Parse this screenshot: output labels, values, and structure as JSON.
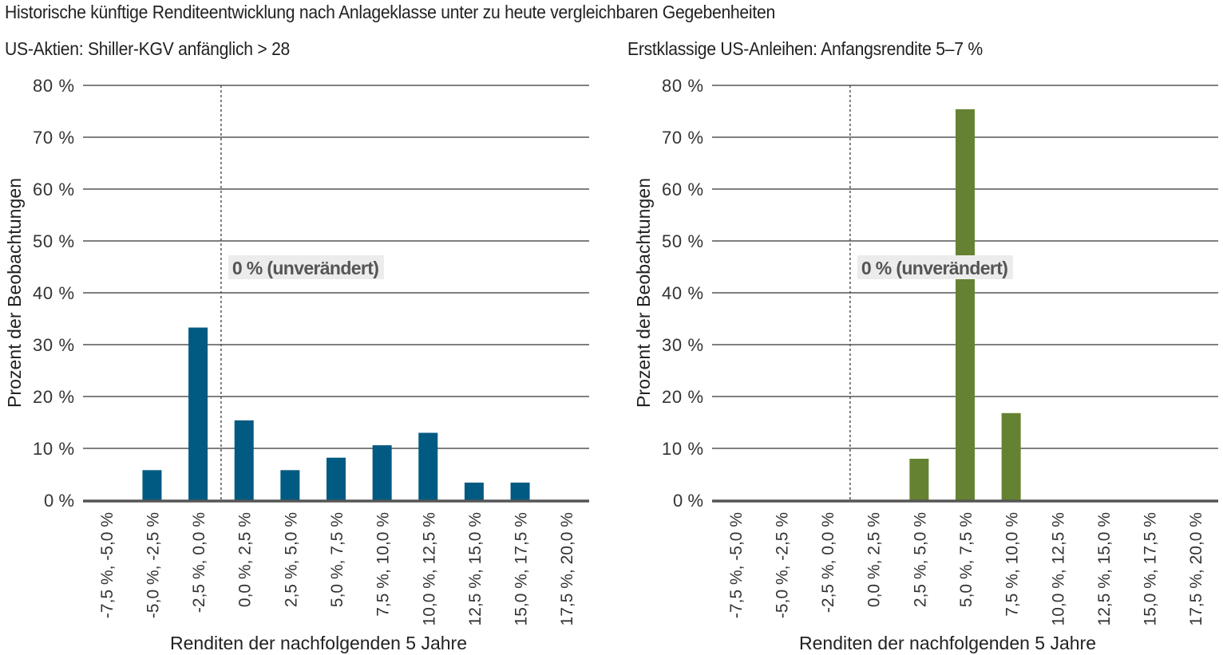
{
  "title": "Historische künftige Renditeentwicklung nach Anlageklasse unter zu heute vergleichbaren Gegebenheiten",
  "chart_data": [
    {
      "type": "bar",
      "title": "US-Aktien: Shiller-KGV anfänglich > 28",
      "xlabel": "Renditen der nachfolgenden 5 Jahre",
      "ylabel": "Prozent der Beobachtungen",
      "ylim": [
        0,
        80
      ],
      "yticks": [
        "0 %",
        "10 %",
        "20 %",
        "30 %",
        "40 %",
        "50 %",
        "60 %",
        "70 %",
        "80 %"
      ],
      "categories": [
        "-7,5 %, -5,0 %",
        "-5,0 %, -2,5 %",
        "-2,5 %, 0,0 %",
        "0,0 %, 2,5 %",
        "2,5 %, 5,0 %",
        "5,0 %, 7,5 %",
        "7,5 %, 10,0 %",
        "10,0 %, 12,5 %",
        "12,5 %, 15,0 %",
        "15,0 %, 17,5 %",
        "17,5 %, 20,0 %"
      ],
      "values": [
        0,
        5.8,
        33.3,
        15.4,
        5.8,
        8.2,
        10.6,
        13.0,
        3.4,
        3.4,
        0
      ],
      "color": "#005a82",
      "reference_line": {
        "after_category_index": 2,
        "label": "0 % (unverändert)"
      },
      "grid": true
    },
    {
      "type": "bar",
      "title": "Erstklassige US-Anleihen: Anfangsrendite 5–7 %",
      "xlabel": "Renditen der nachfolgenden 5 Jahre",
      "ylabel": "Prozent der Beobachtungen",
      "ylim": [
        0,
        80
      ],
      "yticks": [
        "0 %",
        "10 %",
        "20 %",
        "30 %",
        "40 %",
        "50 %",
        "60 %",
        "70 %",
        "80 %"
      ],
      "categories": [
        "-7,5 %, -5,0 %",
        "-5,0 %, -2,5 %",
        "-2,5 %, 0,0 %",
        "0,0 %, 2,5 %",
        "2,5 %, 5,0 %",
        "5,0 %, 7,5 %",
        "7,5 %, 10,0 %",
        "10,0 %, 12,5 %",
        "12,5 %, 15,0 %",
        "15,0 %, 17,5 %",
        "17,5 %, 20,0 %"
      ],
      "values": [
        0,
        0,
        0,
        0,
        8.0,
        75.4,
        16.8,
        0,
        0,
        0,
        0
      ],
      "color": "#658232",
      "reference_line": {
        "after_category_index": 2,
        "label": "0 % (unverändert)"
      },
      "grid": true
    }
  ]
}
